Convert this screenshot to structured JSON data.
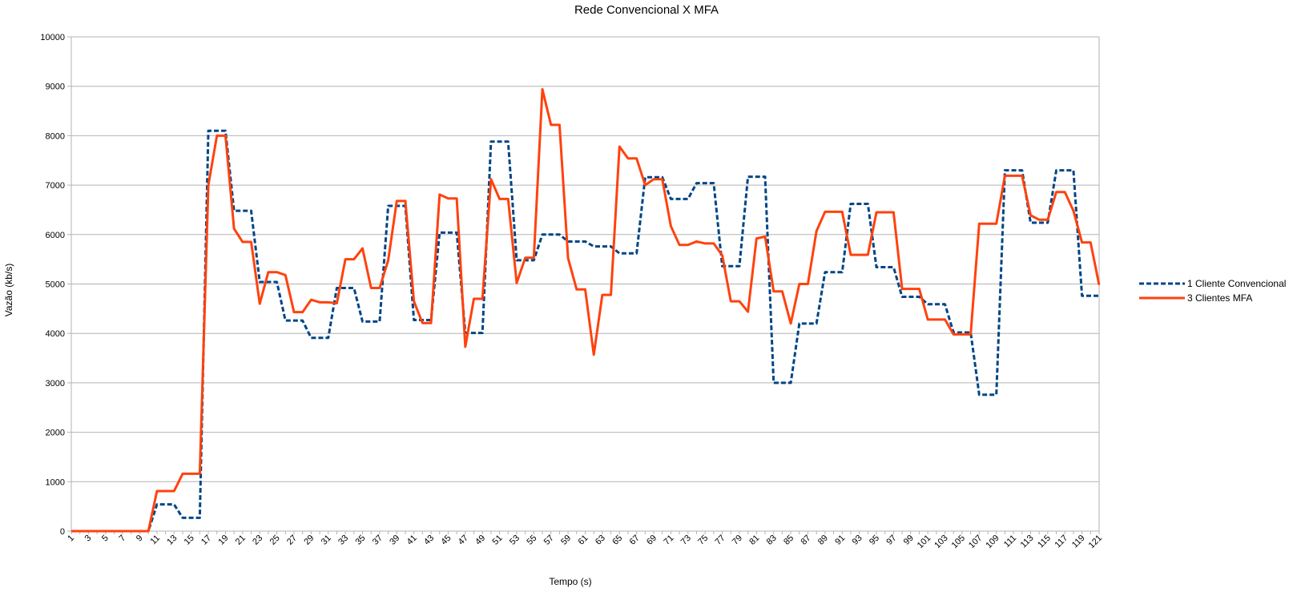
{
  "chart_data": {
    "type": "line",
    "title": "Rede Convencional X MFA",
    "xlabel": "Tempo (s)",
    "ylabel": "Vazão (kb/s)",
    "ylim": [
      0,
      10000
    ],
    "yticks": [
      0,
      1000,
      2000,
      3000,
      4000,
      5000,
      6000,
      7000,
      8000,
      9000,
      10000
    ],
    "xlim": [
      1,
      121
    ],
    "xtick_labels": [
      "1",
      "3",
      "5",
      "7",
      "9",
      "11",
      "13",
      "15",
      "17",
      "19",
      "21",
      "23",
      "25",
      "27",
      "29",
      "31",
      "33",
      "35",
      "37",
      "39",
      "41",
      "43",
      "45",
      "47",
      "49",
      "51",
      "53",
      "55",
      "57",
      "59",
      "61",
      "63",
      "65",
      "67",
      "69",
      "71",
      "73",
      "75",
      "77",
      "79",
      "81",
      "83",
      "85",
      "87",
      "89",
      "91",
      "93",
      "95",
      "97",
      "99",
      "101",
      "103",
      "105",
      "107",
      "109",
      "111",
      "113",
      "115",
      "117",
      "119",
      "121"
    ],
    "grid": "horizontal",
    "legend_position": "right",
    "colors": {
      "conv": "#004586",
      "mfa": "#ff420e"
    },
    "series": [
      {
        "name": "1 Cliente Convencional",
        "style": "dashed",
        "color": "#004586",
        "values": [
          0,
          0,
          0,
          0,
          0,
          0,
          0,
          0,
          0,
          0,
          540,
          540,
          540,
          270,
          270,
          270,
          8100,
          8100,
          8100,
          6480,
          6480,
          6480,
          5040,
          5040,
          5040,
          4260,
          4260,
          4260,
          3910,
          3910,
          3910,
          4920,
          4920,
          4920,
          4240,
          4240,
          4240,
          6580,
          6580,
          6580,
          4270,
          4270,
          4270,
          6040,
          6040,
          6040,
          4010,
          4010,
          4010,
          7880,
          7880,
          7880,
          5480,
          5480,
          5480,
          6000,
          6000,
          6000,
          5860,
          5860,
          5860,
          5760,
          5760,
          5760,
          5620,
          5620,
          5620,
          7160,
          7160,
          7160,
          6720,
          6720,
          6720,
          7040,
          7040,
          7040,
          5360,
          5360,
          5360,
          7170,
          7170,
          7170,
          3000,
          3000,
          3000,
          4200,
          4200,
          4200,
          5240,
          5240,
          5240,
          6620,
          6620,
          6620,
          5340,
          5340,
          5340,
          4740,
          4740,
          4740,
          4590,
          4590,
          4590,
          4020,
          4020,
          4020,
          2760,
          2760,
          2760,
          7300,
          7300,
          7300,
          6240,
          6240,
          6240,
          7300,
          7300,
          7300,
          4760,
          4760,
          4760
        ]
      },
      {
        "name": "3 Clientes MFA",
        "style": "solid",
        "color": "#ff420e",
        "values": [
          0,
          0,
          0,
          0,
          0,
          0,
          0,
          0,
          0,
          0,
          810,
          810,
          810,
          1160,
          1160,
          1160,
          7000,
          8000,
          8000,
          6120,
          5850,
          5850,
          4600,
          5240,
          5240,
          5180,
          4430,
          4430,
          4680,
          4630,
          4630,
          4610,
          5500,
          5500,
          5720,
          4920,
          4920,
          5480,
          6680,
          6680,
          4650,
          4210,
          4210,
          6810,
          6730,
          6730,
          3730,
          4700,
          4700,
          7120,
          6720,
          6720,
          5020,
          5530,
          5530,
          8940,
          8220,
          8220,
          5520,
          4890,
          4890,
          3570,
          4780,
          4780,
          7780,
          7540,
          7540,
          7000,
          7120,
          7120,
          6170,
          5790,
          5790,
          5860,
          5820,
          5820,
          5580,
          4650,
          4650,
          4440,
          5920,
          5960,
          4850,
          4850,
          4200,
          5000,
          5000,
          6070,
          6460,
          6460,
          6460,
          5590,
          5590,
          5590,
          6450,
          6450,
          6450,
          4900,
          4900,
          4900,
          4280,
          4280,
          4280,
          3980,
          3980,
          3980,
          6220,
          6220,
          6220,
          7190,
          7190,
          7190,
          6390,
          6300,
          6300,
          6860,
          6860,
          6480,
          5840,
          5840,
          4980
        ]
      }
    ]
  }
}
